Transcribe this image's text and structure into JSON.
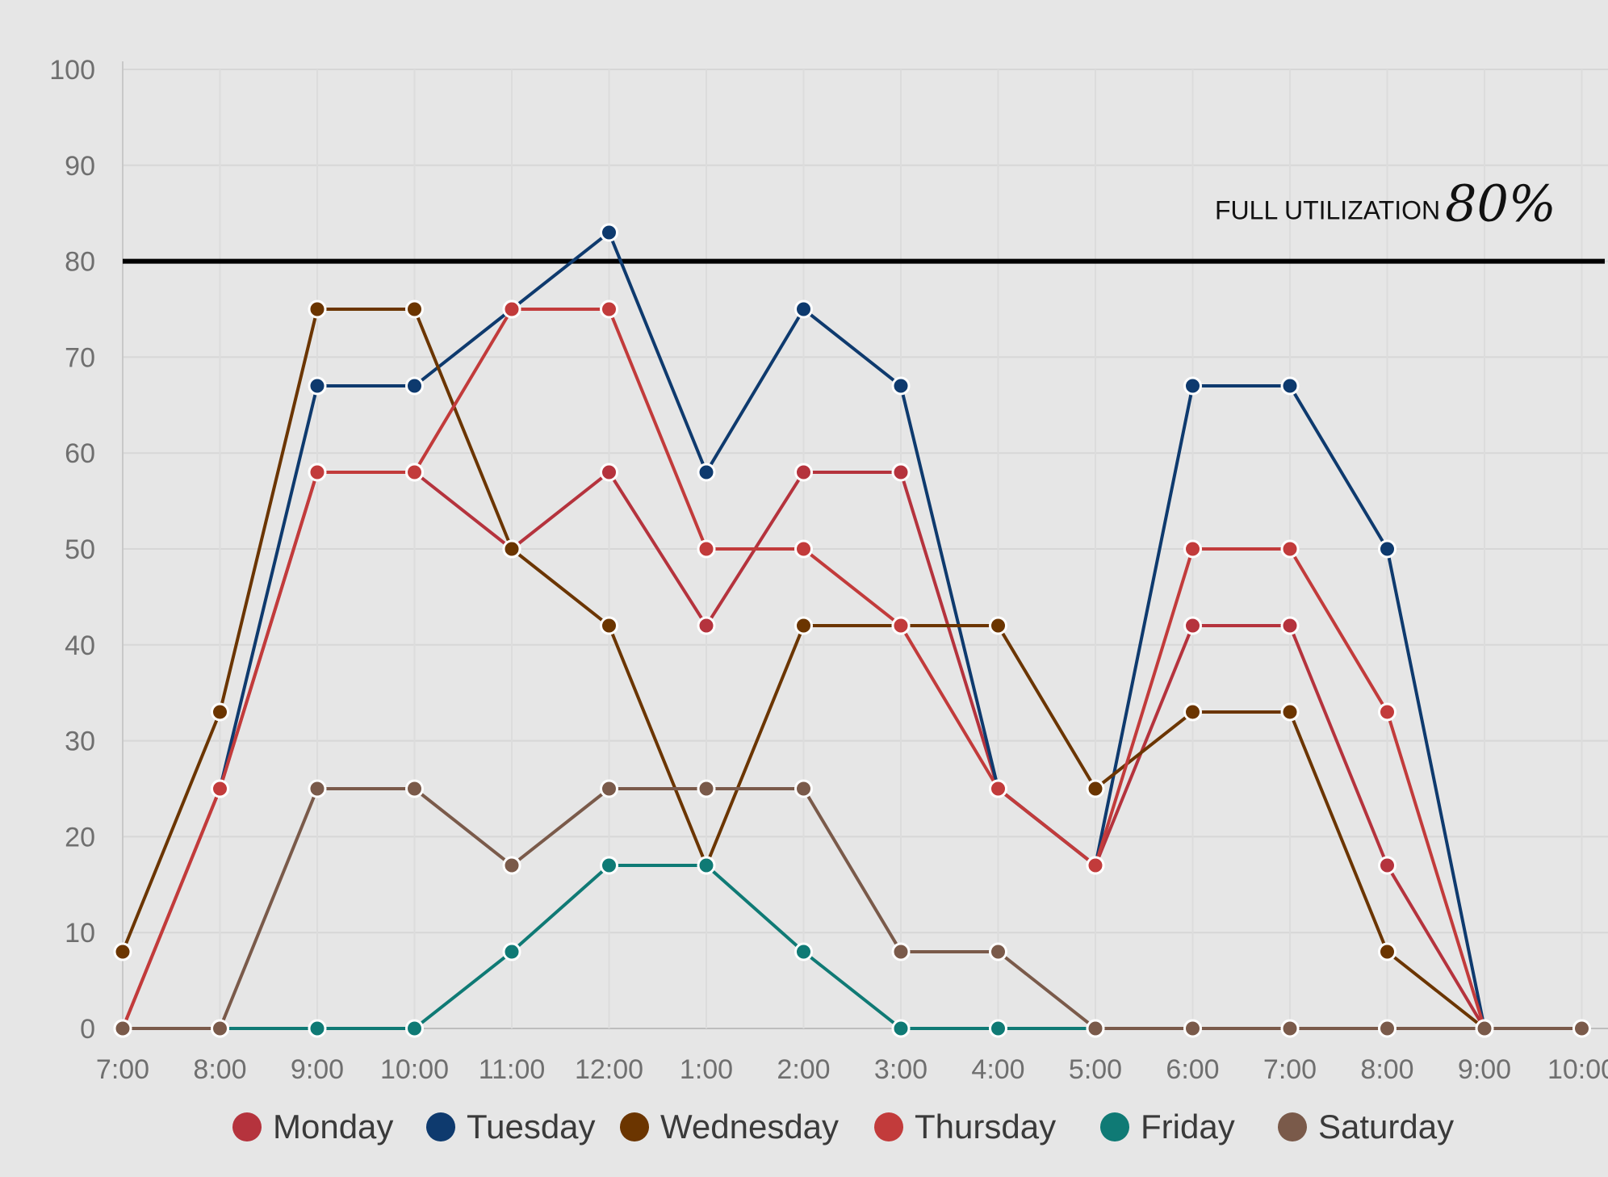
{
  "chart_data": {
    "type": "line",
    "x": [
      "7:00",
      "8:00",
      "9:00",
      "10:00",
      "11:00",
      "12:00",
      "1:00",
      "2:00",
      "3:00",
      "4:00",
      "5:00",
      "6:00",
      "7:00",
      "8:00",
      "9:00",
      "10:00"
    ],
    "ylim": [
      0,
      100
    ],
    "yticks": [
      "0",
      "10",
      "20",
      "30",
      "40",
      "50",
      "60",
      "70",
      "80",
      "90",
      "100"
    ],
    "grid": true,
    "legend_position": "bottom",
    "reference_line": {
      "value": 80,
      "label_small": "FULL UTILIZATION",
      "label_big": "80%"
    },
    "series": [
      {
        "name": "Monday",
        "color": "#b5333d",
        "values": [
          0,
          25,
          58,
          58,
          50,
          58,
          42,
          58,
          58,
          25,
          17,
          42,
          42,
          17,
          0,
          null
        ]
      },
      {
        "name": "Tuesday",
        "color": "#0e3a6e",
        "values": [
          null,
          25,
          67,
          67,
          75,
          83,
          58,
          75,
          67,
          25,
          17,
          67,
          67,
          50,
          0,
          null
        ]
      },
      {
        "name": "Wednesday",
        "color": "#6b3500",
        "values": [
          8,
          33,
          75,
          75,
          50,
          42,
          17,
          42,
          42,
          42,
          25,
          33,
          33,
          8,
          0,
          null
        ]
      },
      {
        "name": "Thursday",
        "color": "#c23b3b",
        "values": [
          0,
          25,
          58,
          58,
          75,
          75,
          50,
          50,
          42,
          25,
          17,
          50,
          50,
          33,
          0,
          null
        ]
      },
      {
        "name": "Friday",
        "color": "#0f7a75",
        "values": [
          null,
          0,
          0,
          0,
          8,
          17,
          17,
          8,
          0,
          0,
          0,
          null,
          null,
          null,
          null,
          null
        ]
      },
      {
        "name": "Saturday",
        "color": "#7a5a4a",
        "values": [
          0,
          0,
          25,
          25,
          17,
          25,
          25,
          25,
          8,
          8,
          0,
          0,
          0,
          0,
          0,
          0
        ]
      }
    ]
  }
}
